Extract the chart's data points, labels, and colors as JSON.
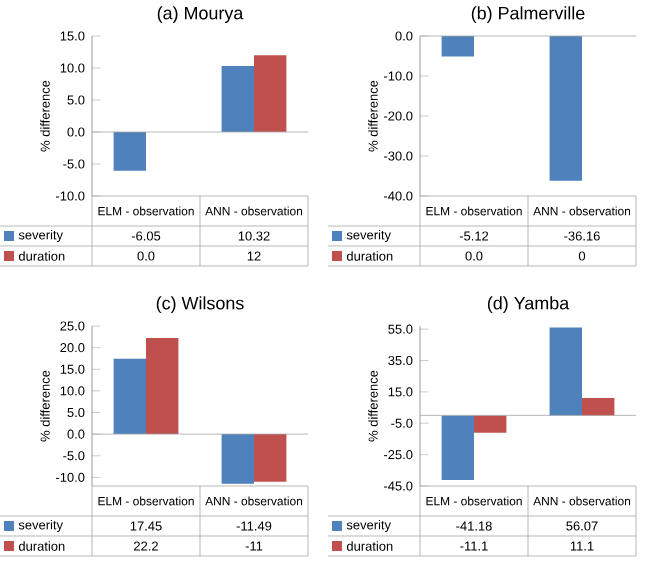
{
  "chart_data": [
    {
      "type": "bar",
      "title": "(a) Mourya",
      "ylabel": "% difference",
      "categories": [
        "ELM - observation",
        "ANN - observation"
      ],
      "series": [
        {
          "name": "severity",
          "color": "#4f81bd",
          "values": [
            -6.05,
            10.32
          ],
          "value_labels": [
            "-6.05",
            "10.32"
          ]
        },
        {
          "name": "duration",
          "color": "#c0504d",
          "values": [
            0.0,
            12
          ],
          "value_labels": [
            "0.0",
            "12"
          ]
        }
      ],
      "legend": "bottom left",
      "ylim": [
        -10,
        15
      ],
      "yticks": [
        {
          "value": -10,
          "label": "-10.0"
        },
        {
          "value": -5,
          "label": "-5.0"
        },
        {
          "value": 0,
          "label": "0.0"
        },
        {
          "value": 5,
          "label": "5.0"
        },
        {
          "value": 10,
          "label": "10.0"
        },
        {
          "value": 15,
          "label": "15.0"
        }
      ]
    },
    {
      "type": "bar",
      "title": "(b) Palmerville",
      "ylabel": "% difference",
      "categories": [
        "ELM - observation",
        "ANN - observation"
      ],
      "series": [
        {
          "name": "severity",
          "color": "#4f81bd",
          "values": [
            -5.12,
            -36.16
          ],
          "value_labels": [
            "-5.12",
            "-36.16"
          ]
        },
        {
          "name": "duration",
          "color": "#c0504d",
          "values": [
            0.0,
            0
          ],
          "value_labels": [
            "0.0",
            "0"
          ]
        }
      ],
      "legend": "bottom left",
      "ylim": [
        -40,
        0
      ],
      "yticks": [
        {
          "value": -40,
          "label": "-40.0"
        },
        {
          "value": -30,
          "label": "-30.0"
        },
        {
          "value": -20,
          "label": "-20.0"
        },
        {
          "value": -10,
          "label": "-10.0"
        },
        {
          "value": 0,
          "label": "0.0"
        }
      ]
    },
    {
      "type": "bar",
      "title": "(c) Wilsons",
      "ylabel": "% difference",
      "categories": [
        "ELM - observation",
        "ANN - observation"
      ],
      "series": [
        {
          "name": "severity",
          "color": "#4f81bd",
          "values": [
            17.45,
            -11.49
          ],
          "value_labels": [
            "17.45",
            "-11.49"
          ]
        },
        {
          "name": "duration",
          "color": "#c0504d",
          "values": [
            22.2,
            -11
          ],
          "value_labels": [
            "22.2",
            "-11"
          ]
        }
      ],
      "legend": "bottom left",
      "ylim": [
        -12,
        25
      ],
      "yticks": [
        {
          "value": -10,
          "label": "-10.0"
        },
        {
          "value": -5,
          "label": "-5.0"
        },
        {
          "value": 0,
          "label": "0.0"
        },
        {
          "value": 5,
          "label": "5.0"
        },
        {
          "value": 10,
          "label": "10.0"
        },
        {
          "value": 15,
          "label": "15.0"
        },
        {
          "value": 20,
          "label": "20.0"
        },
        {
          "value": 25,
          "label": "25.0"
        }
      ]
    },
    {
      "type": "bar",
      "title": "(d) Yamba",
      "ylabel": "% difference",
      "categories": [
        "ELM - observation",
        "ANN - observation"
      ],
      "series": [
        {
          "name": "severity",
          "color": "#4f81bd",
          "values": [
            -41.18,
            56.07
          ],
          "value_labels": [
            "-41.18",
            "56.07"
          ]
        },
        {
          "name": "duration",
          "color": "#c0504d",
          "values": [
            -11.1,
            11.1
          ],
          "value_labels": [
            "-11.1",
            "11.1"
          ]
        }
      ],
      "legend": "bottom left",
      "ylim": [
        -45,
        57
      ],
      "yticks": [
        {
          "value": -45,
          "label": "-45.0"
        },
        {
          "value": -25,
          "label": "-25.0"
        },
        {
          "value": -5,
          "label": "-5.0"
        },
        {
          "value": 15,
          "label": "15.0"
        },
        {
          "value": 35,
          "label": "35.0"
        },
        {
          "value": 55,
          "label": "55.0"
        }
      ]
    }
  ]
}
